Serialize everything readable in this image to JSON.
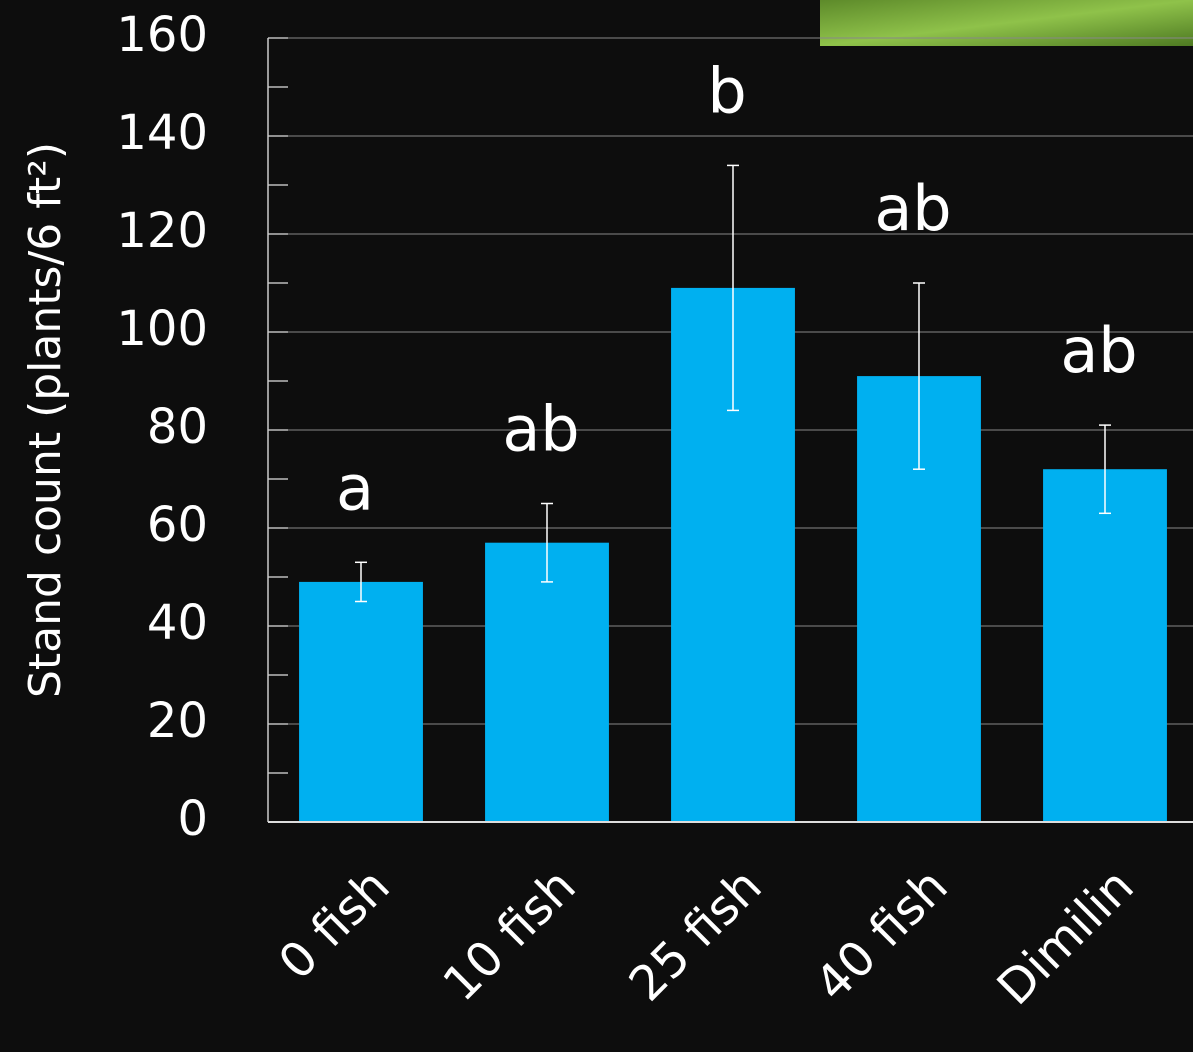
{
  "chart_data": {
    "type": "bar",
    "y_label": "Stand count (plants/6 ft²)",
    "categories": [
      "0 fish",
      "10 fish",
      "25 fish",
      "40 fish",
      "Dimilin"
    ],
    "values": [
      49,
      57,
      109,
      91,
      72
    ],
    "errors": [
      4,
      8,
      25,
      19,
      9
    ],
    "letters": [
      "a",
      "ab",
      "b",
      "ab",
      "ab"
    ],
    "color": "#00b0f0",
    "ylim": [
      0,
      160
    ],
    "yticks": [
      0,
      20,
      40,
      60,
      80,
      100,
      120,
      140,
      160
    ],
    "minor_yticks": [
      10,
      30,
      50,
      70,
      90,
      110,
      130,
      150
    ],
    "grid": true
  }
}
